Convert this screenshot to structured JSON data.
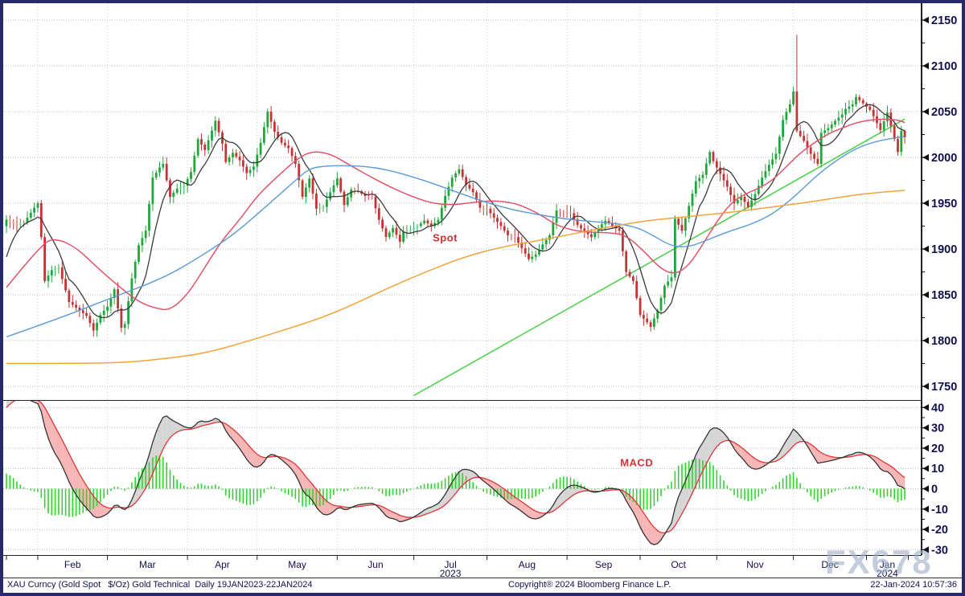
{
  "window": {
    "frame_color": "#262a6d",
    "background": "#ffffff"
  },
  "status_bar": {
    "left": "XAU Curncy (Gold Spot   $/Oz) Gold Technical  Daily 19JAN2023-22JAN2024",
    "center": "Copyright® 2024 Bloomberg Finance L.P.",
    "right": "22-Jan-2024 10:57:36"
  },
  "watermark": "FX678",
  "chart_data": {
    "type": "candlestick+macd",
    "title": "XAU Curncy (Gold Spot $/Oz) Gold Technical Daily 19JAN2023-22JAN2024",
    "instrument": "XAU Gold Spot $/Oz",
    "period": "19JAN2023 - 22JAN2024",
    "axis_text_color": "#11114e",
    "grid_color": "#b8b8b8",
    "x_axis": {
      "total_days": 259,
      "month_ticks": [
        {
          "label": "Feb",
          "start_day": 9
        },
        {
          "label": "Mar",
          "start_day": 29
        },
        {
          "label": "Apr",
          "start_day": 52
        },
        {
          "label": "May",
          "start_day": 72
        },
        {
          "label": "Jun",
          "start_day": 95
        },
        {
          "label": "Jul",
          "start_day": 117
        },
        {
          "label": "Aug",
          "start_day": 138
        },
        {
          "label": "Sep",
          "start_day": 161
        },
        {
          "label": "Oct",
          "start_day": 182
        },
        {
          "label": "Nov",
          "start_day": 204
        },
        {
          "label": "Dec",
          "start_day": 226
        },
        {
          "label": "Jan",
          "start_day": 247
        }
      ],
      "year_labels": [
        {
          "label": "2023",
          "center_day": 127.5
        },
        {
          "label": "2024",
          "center_day": 253
        }
      ]
    },
    "price_panel": {
      "ylim": [
        1736,
        2162
      ],
      "yticks": [
        1750,
        1800,
        1850,
        1900,
        1950,
        2000,
        2050,
        2100,
        2150
      ],
      "minor_step": 25,
      "up_color": "#1fa73c",
      "down_color": "#c43434",
      "up_pale": "#8fce9f",
      "down_pale": "#eaa9a9",
      "annotation": {
        "text": "Spot",
        "color": "#d03030",
        "day": 126,
        "price": 1912
      },
      "special_high": {
        "day": 227,
        "high": 2134
      },
      "close_keypoints": [
        [
          0,
          1932
        ],
        [
          3,
          1926
        ],
        [
          5,
          1929
        ],
        [
          8,
          1945
        ],
        [
          9,
          1950
        ],
        [
          10,
          1913
        ],
        [
          11,
          1865
        ],
        [
          13,
          1877
        ],
        [
          15,
          1880
        ],
        [
          18,
          1842
        ],
        [
          20,
          1836
        ],
        [
          23,
          1827
        ],
        [
          25,
          1811
        ],
        [
          27,
          1828
        ],
        [
          29,
          1837
        ],
        [
          31,
          1856
        ],
        [
          33,
          1814
        ],
        [
          34,
          1818
        ],
        [
          36,
          1868
        ],
        [
          38,
          1904
        ],
        [
          40,
          1920
        ],
        [
          42,
          1978
        ],
        [
          44,
          1989
        ],
        [
          45,
          1993
        ],
        [
          47,
          1957
        ],
        [
          49,
          1966
        ],
        [
          51,
          1969
        ],
        [
          53,
          1984
        ],
        [
          55,
          2020
        ],
        [
          57,
          2008
        ],
        [
          60,
          2040
        ],
        [
          62,
          2015
        ],
        [
          63,
          1995
        ],
        [
          65,
          2005
        ],
        [
          67,
          1997
        ],
        [
          69,
          1983
        ],
        [
          71,
          1990
        ],
        [
          73,
          2016
        ],
        [
          75,
          2050
        ],
        [
          77,
          2028
        ],
        [
          79,
          2016
        ],
        [
          81,
          2010
        ],
        [
          83,
          1993
        ],
        [
          85,
          1957
        ],
        [
          87,
          1977
        ],
        [
          89,
          1944
        ],
        [
          91,
          1946
        ],
        [
          93,
          1962
        ],
        [
          95,
          1977
        ],
        [
          97,
          1948
        ],
        [
          99,
          1965
        ],
        [
          101,
          1963
        ],
        [
          103,
          1958
        ],
        [
          105,
          1957
        ],
        [
          107,
          1932
        ],
        [
          109,
          1913
        ],
        [
          111,
          1923
        ],
        [
          113,
          1908
        ],
        [
          114,
          1919
        ],
        [
          116,
          1921
        ],
        [
          118,
          1925
        ],
        [
          120,
          1931
        ],
        [
          122,
          1925
        ],
        [
          124,
          1932
        ],
        [
          126,
          1958
        ],
        [
          128,
          1978
        ],
        [
          130,
          1987
        ],
        [
          132,
          1970
        ],
        [
          134,
          1962
        ],
        [
          136,
          1945
        ],
        [
          138,
          1944
        ],
        [
          140,
          1934
        ],
        [
          142,
          1925
        ],
        [
          144,
          1915
        ],
        [
          146,
          1913
        ],
        [
          148,
          1901
        ],
        [
          150,
          1889
        ],
        [
          152,
          1894
        ],
        [
          154,
          1905
        ],
        [
          156,
          1915
        ],
        [
          158,
          1942
        ],
        [
          160,
          1940
        ],
        [
          162,
          1939
        ],
        [
          164,
          1926
        ],
        [
          166,
          1919
        ],
        [
          168,
          1913
        ],
        [
          170,
          1923
        ],
        [
          172,
          1931
        ],
        [
          174,
          1925
        ],
        [
          176,
          1920
        ],
        [
          178,
          1875
        ],
        [
          180,
          1865
        ],
        [
          182,
          1828
        ],
        [
          184,
          1820
        ],
        [
          185,
          1815
        ],
        [
          187,
          1833
        ],
        [
          189,
          1860
        ],
        [
          191,
          1869
        ],
        [
          192,
          1933
        ],
        [
          194,
          1920
        ],
        [
          196,
          1947
        ],
        [
          198,
          1974
        ],
        [
          200,
          1981
        ],
        [
          202,
          2006
        ],
        [
          203,
          1996
        ],
        [
          205,
          1982
        ],
        [
          207,
          1968
        ],
        [
          209,
          1950
        ],
        [
          211,
          1957
        ],
        [
          213,
          1946
        ],
        [
          215,
          1960
        ],
        [
          217,
          1978
        ],
        [
          219,
          1992
        ],
        [
          221,
          2004
        ],
        [
          223,
          2041
        ],
        [
          225,
          2058
        ],
        [
          226,
          2072
        ],
        [
          227,
          2029
        ],
        [
          229,
          2018
        ],
        [
          231,
          2004
        ],
        [
          233,
          1993
        ],
        [
          234,
          2027
        ],
        [
          236,
          2032
        ],
        [
          238,
          2040
        ],
        [
          240,
          2047
        ],
        [
          241,
          2053
        ],
        [
          243,
          2058
        ],
        [
          244,
          2066
        ],
        [
          246,
          2059
        ],
        [
          248,
          2052
        ],
        [
          249,
          2045
        ],
        [
          251,
          2030
        ],
        [
          253,
          2049
        ],
        [
          255,
          2020
        ],
        [
          256,
          2006
        ],
        [
          257,
          2029
        ],
        [
          258,
          2022
        ]
      ],
      "pre_keypoints": [
        [
          -80,
          1712
        ],
        [
          -70,
          1662
        ],
        [
          -62,
          1650
        ],
        [
          -55,
          1632
        ],
        [
          -50,
          1645
        ],
        [
          -45,
          1668
        ],
        [
          -40,
          1632
        ],
        [
          -36,
          1645
        ],
        [
          -30,
          1712
        ],
        [
          -26,
          1752
        ],
        [
          -21,
          1782
        ],
        [
          -16,
          1802
        ],
        [
          -12,
          1792
        ],
        [
          -8,
          1828
        ],
        [
          -5,
          1872
        ],
        [
          -3,
          1902
        ],
        [
          -1,
          1925
        ]
      ],
      "ma_lines": [
        {
          "name": "ma-fast-black",
          "color": "#3b3b3b",
          "type": "sma",
          "period": 8,
          "width": 1.3
        },
        {
          "name": "ma-mid-red",
          "color": "#e0546a",
          "type": "keypoints",
          "width": 1.5,
          "points": [
            [
              0,
              1858
            ],
            [
              10,
              1905
            ],
            [
              14,
              1912
            ],
            [
              20,
              1902
            ],
            [
              26,
              1880
            ],
            [
              32,
              1860
            ],
            [
              38,
              1842
            ],
            [
              43,
              1835
            ],
            [
              47,
              1833
            ],
            [
              52,
              1850
            ],
            [
              57,
              1880
            ],
            [
              62,
              1910
            ],
            [
              67,
              1932
            ],
            [
              72,
              1958
            ],
            [
              78,
              1980
            ],
            [
              84,
              2000
            ],
            [
              88,
              2007
            ],
            [
              93,
              2004
            ],
            [
              98,
              1993
            ],
            [
              104,
              1980
            ],
            [
              110,
              1968
            ],
            [
              116,
              1958
            ],
            [
              122,
              1950
            ],
            [
              128,
              1948
            ],
            [
              134,
              1951
            ],
            [
              140,
              1953
            ],
            [
              146,
              1950
            ],
            [
              150,
              1944
            ],
            [
              154,
              1936
            ],
            [
              158,
              1926
            ],
            [
              163,
              1920
            ],
            [
              168,
              1918
            ],
            [
              173,
              1918
            ],
            [
              178,
              1915
            ],
            [
              183,
              1898
            ],
            [
              188,
              1878
            ],
            [
              192,
              1872
            ],
            [
              196,
              1882
            ],
            [
              200,
              1905
            ],
            [
              204,
              1930
            ],
            [
              208,
              1950
            ],
            [
              212,
              1960
            ],
            [
              216,
              1966
            ],
            [
              220,
              1975
            ],
            [
              224,
              1990
            ],
            [
              228,
              2005
            ],
            [
              232,
              2016
            ],
            [
              236,
              2026
            ],
            [
              240,
              2032
            ],
            [
              244,
              2038
            ],
            [
              248,
              2041
            ],
            [
              252,
              2042
            ],
            [
              256,
              2041
            ],
            [
              258,
              2038
            ]
          ]
        },
        {
          "name": "ma-slow-blue",
          "color": "#5b9bd5",
          "type": "keypoints",
          "width": 1.4,
          "points": [
            [
              0,
              1804
            ],
            [
              15,
              1824
            ],
            [
              29,
              1845
            ],
            [
              45,
              1868
            ],
            [
              55,
              1890
            ],
            [
              65,
              1915
            ],
            [
              72,
              1938
            ],
            [
              78,
              1958
            ],
            [
              83,
              1975
            ],
            [
              87,
              1988
            ],
            [
              92,
              1991
            ],
            [
              100,
              1991
            ],
            [
              106,
              1989
            ],
            [
              112,
              1984
            ],
            [
              120,
              1975
            ],
            [
              128,
              1964
            ],
            [
              136,
              1953
            ],
            [
              144,
              1944
            ],
            [
              152,
              1938
            ],
            [
              160,
              1933
            ],
            [
              168,
              1930
            ],
            [
              175,
              1928
            ],
            [
              181,
              1924
            ],
            [
              186,
              1914
            ],
            [
              191,
              1903
            ],
            [
              196,
              1902
            ],
            [
              202,
              1911
            ],
            [
              208,
              1920
            ],
            [
              214,
              1927
            ],
            [
              220,
              1938
            ],
            [
              226,
              1956
            ],
            [
              232,
              1978
            ],
            [
              238,
              1996
            ],
            [
              244,
              2010
            ],
            [
              250,
              2018
            ],
            [
              258,
              2023
            ]
          ]
        },
        {
          "name": "ma-long-orange",
          "color": "#f2a33c",
          "type": "keypoints",
          "width": 1.5,
          "points": [
            [
              0,
              1775
            ],
            [
              20,
              1775
            ],
            [
              34,
              1776
            ],
            [
              45,
              1780
            ],
            [
              57,
              1786
            ],
            [
              70,
              1800
            ],
            [
              80,
              1812
            ],
            [
              90,
              1824
            ],
            [
              100,
              1840
            ],
            [
              110,
              1858
            ],
            [
              121,
              1876
            ],
            [
              132,
              1892
            ],
            [
              142,
              1902
            ],
            [
              151,
              1908
            ],
            [
              162,
              1916
            ],
            [
              170,
              1922
            ],
            [
              176,
              1926
            ],
            [
              184,
              1931
            ],
            [
              192,
              1934
            ],
            [
              200,
              1937
            ],
            [
              208,
              1940
            ],
            [
              216,
              1944
            ],
            [
              224,
              1948
            ],
            [
              232,
              1952
            ],
            [
              240,
              1957
            ],
            [
              248,
              1961
            ],
            [
              258,
              1964
            ]
          ]
        }
      ],
      "trendline": {
        "name": "green-uptrend-line",
        "color": "#53d153",
        "width": 1.6,
        "from": [
          117,
          1740
        ],
        "to": [
          258,
          2042
        ]
      }
    },
    "macd_panel": {
      "ylim": [
        -32,
        43
      ],
      "yticks": [
        -30,
        -20,
        -10,
        0,
        10,
        20,
        30,
        40
      ],
      "minor_step": 5,
      "params": {
        "fast": 12,
        "slow": 26,
        "signal": 9
      },
      "annotation": {
        "text": "MACD",
        "color": "#d23535",
        "day": 181,
        "value": 13
      },
      "macd_color": "#333333",
      "signal_color": "#e23535",
      "fill_above_color": "#cfcfcf",
      "fill_below_color": "#f4a9a9",
      "hist_color": "#2fd42f"
    }
  }
}
